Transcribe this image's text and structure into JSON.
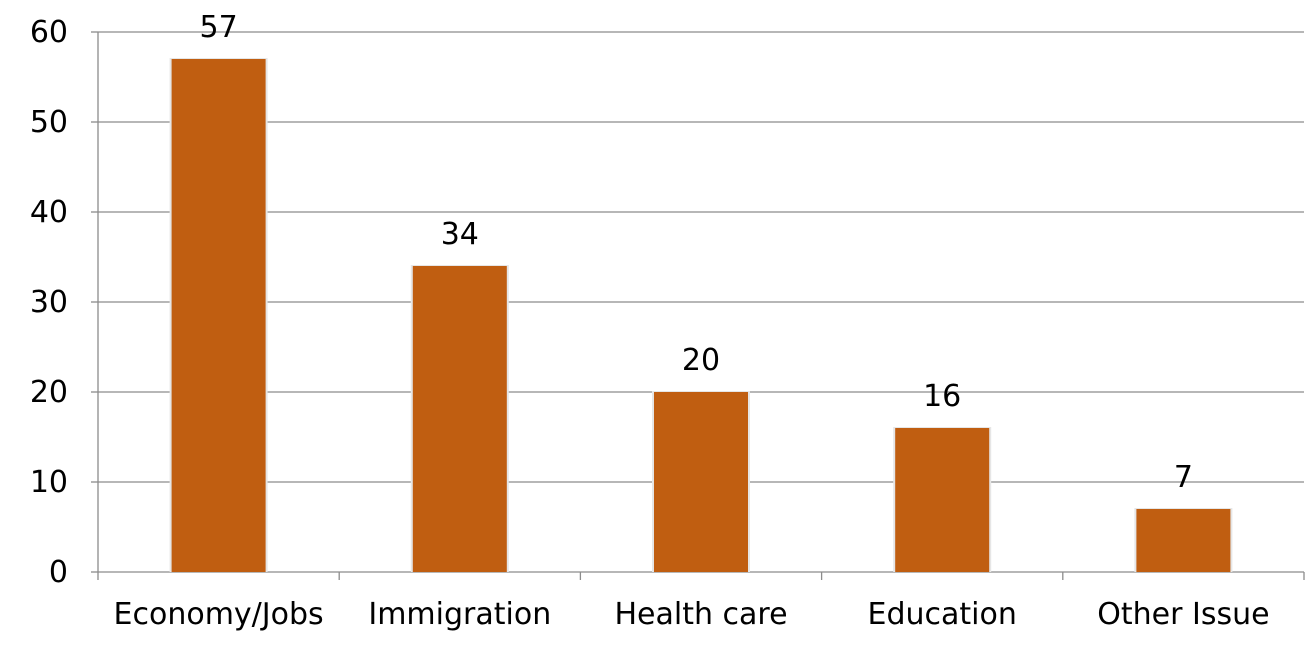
{
  "chart_data": {
    "type": "bar",
    "categories": [
      "Economy/Jobs",
      "Immigration",
      "Health care",
      "Education",
      "Other Issue"
    ],
    "values": [
      57,
      34,
      20,
      16,
      7
    ],
    "data_labels": [
      "57",
      "34",
      "20",
      "16",
      "7"
    ],
    "ylim": [
      0,
      60
    ],
    "yticks": [
      0,
      10,
      20,
      30,
      40,
      50,
      60
    ],
    "ytick_labels": [
      "0",
      "10",
      "20",
      "30",
      "40",
      "50",
      "60"
    ],
    "title": "",
    "xlabel": "",
    "ylabel": "",
    "grid": true,
    "legend": "none",
    "bar_color": "#C05E11",
    "grid_color": "#8C8C8C"
  }
}
